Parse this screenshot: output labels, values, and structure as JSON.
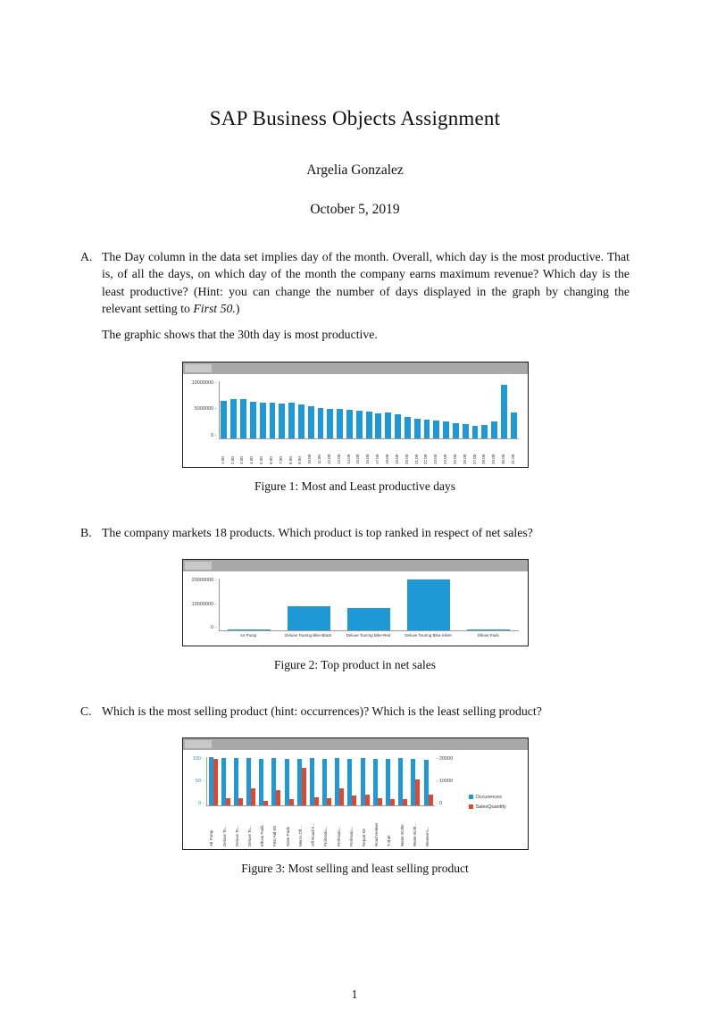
{
  "page": {
    "title": "SAP Business Objects Assignment",
    "author": "Argelia Gonzalez",
    "date": "October 5, 2019",
    "page_number": "1"
  },
  "items": {
    "a": {
      "label": "A.",
      "text1": "The Day column in the data set implies day of the month. Overall, which day is the most productive. That is, of all the days, on which day of the month the company earns maximum revenue? Which day is the least productive? (Hint: you can change the number of days displayed in the graph by changing the relevant setting to ",
      "italic": "First 50.",
      "text2": ")",
      "answer": "The graphic shows that the 30th day is most productive."
    },
    "b": {
      "label": "B.",
      "text": "The company markets 18 products. Which product is top ranked in respect of net sales?"
    },
    "c": {
      "label": "C.",
      "text": "Which is the most selling product (hint: occurrences)? Which is the least selling product?"
    }
  },
  "figures": {
    "fig1": {
      "caption": "Figure 1: Most and Least productive days"
    },
    "fig2": {
      "caption": "Figure 2: Top product in net sales"
    },
    "fig3": {
      "caption": "Figure 3: Most selling and least selling product"
    }
  },
  "colors": {
    "bar_blue": "#1f99d5",
    "bar_red": "#e0472f",
    "chart_header_gray": "#a9a9a9"
  },
  "chart_data": [
    {
      "type": "bar",
      "title": "Most and Least productive days",
      "categories": [
        "1.00",
        "2.00",
        "3.00",
        "4.00",
        "5.00",
        "6.00",
        "7.00",
        "8.00",
        "9.00",
        "10.00",
        "11.00",
        "12.00",
        "13.00",
        "14.00",
        "15.00",
        "16.00",
        "17.00",
        "18.00",
        "19.00",
        "20.00",
        "21.00",
        "22.00",
        "23.00",
        "24.00",
        "25.00",
        "26.00",
        "27.00",
        "28.00",
        "29.00",
        "30.00",
        "31.00"
      ],
      "values": [
        6500000,
        6800000,
        6750000,
        6350000,
        6250000,
        6200000,
        6100000,
        6150000,
        5900000,
        5550000,
        5300000,
        5150000,
        5050000,
        4950000,
        4800000,
        4550000,
        4350000,
        4400000,
        4100000,
        3650000,
        3400000,
        3150000,
        3050000,
        2950000,
        2650000,
        2400000,
        2150000,
        2300000,
        2850000,
        9300000,
        4500000
      ],
      "ylim": [
        0,
        10000000
      ],
      "yticks": [
        "10000000",
        "5000000",
        "0"
      ],
      "bar_color": "#1f99d5",
      "grid": false,
      "legend": "none"
    },
    {
      "type": "bar",
      "title": "Top product in net sales",
      "categories": [
        "Air Pump",
        "Deluxe Touring Bike-Black",
        "Deluxe Touring Bike-Red",
        "Deluxe Touring Bike-Silver",
        "Elbow Pads"
      ],
      "values": [
        200000,
        9200000,
        8600000,
        19500000,
        150000
      ],
      "ylim": [
        0,
        20000000
      ],
      "yticks": [
        "20000000",
        "10000000",
        "0"
      ],
      "bar_color": "#1f99d5",
      "grid": false,
      "legend": "none"
    },
    {
      "type": "grouped-bar",
      "title": "Most selling and least selling product",
      "categories": [
        "Air Pump",
        "Deluxe To...",
        "Deluxe To...",
        "Deluxe To...",
        "Elbow Pads",
        "First Aid Kit",
        "Knee Pads",
        "Men's Off...",
        "Off Road H...",
        "Professio...",
        "Professio...",
        "Professio...",
        "Repair Kit",
        "Road Helmet",
        "T-shirt",
        "Water Bottle",
        "Water Bottl...",
        "Women's..."
      ],
      "series": [
        {
          "name": "Occurences",
          "axis": "left",
          "color": "#1f99d5",
          "values": [
            100,
            98,
            98,
            98,
            97,
            98,
            97,
            96,
            98,
            97,
            98,
            97,
            98,
            97,
            97,
            98,
            97,
            95
          ]
        },
        {
          "name": "SalesQuantity",
          "axis": "right",
          "color": "#e0472f",
          "values": [
            19500,
            3000,
            3200,
            7000,
            2000,
            6500,
            2500,
            15500,
            3500,
            3000,
            7000,
            4000,
            4500,
            3000,
            2500,
            2500,
            11000,
            4500
          ]
        }
      ],
      "left_ylim": [
        0,
        100
      ],
      "left_yticks": [
        "100",
        "50",
        "0"
      ],
      "right_ylim": [
        0,
        20000
      ],
      "right_yticks": [
        "20000",
        "10000",
        "0"
      ],
      "legend_position": "right",
      "grid": false
    }
  ]
}
